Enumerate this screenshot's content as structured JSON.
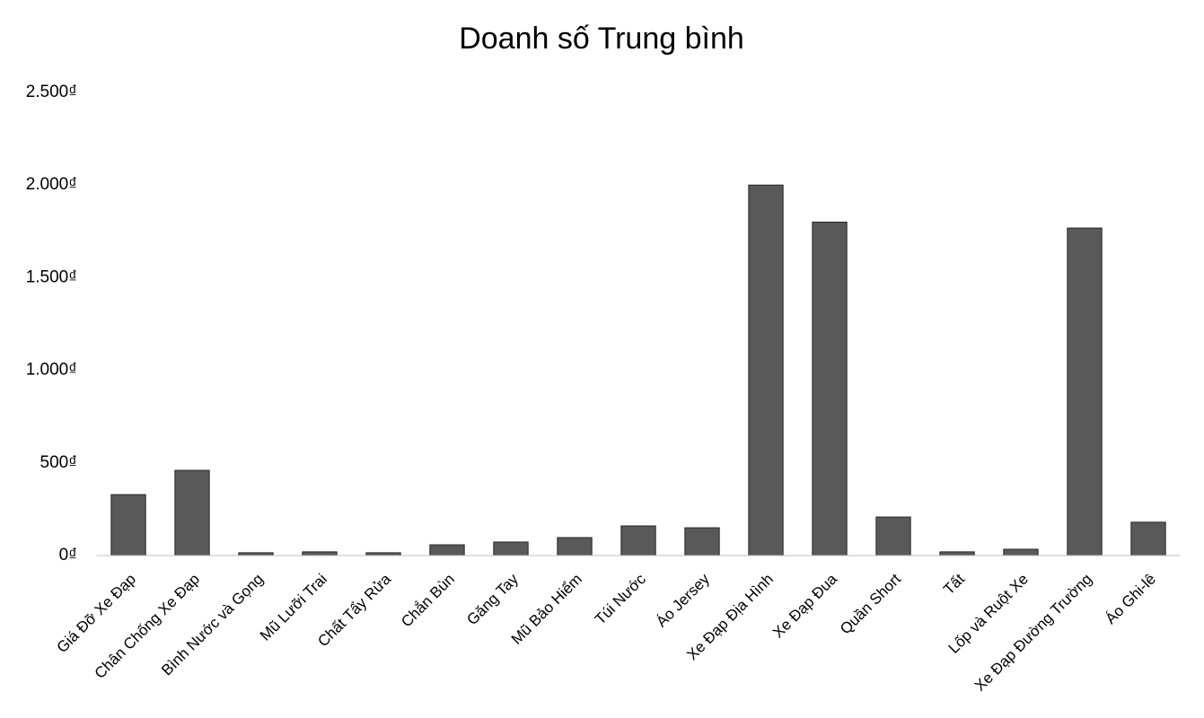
{
  "chart_data": {
    "type": "bar",
    "title": "Doanh số Trung bình",
    "categories": [
      "Giá Đỡ Xe Đạp",
      "Chân Chống Xe Đạp",
      "Bình Nước và Gọng",
      "Mũ Lưỡi Trai",
      "Chất Tẩy Rửa",
      "Chắn Bùn",
      "Găng Tay",
      "Mũ Bảo Hiểm",
      "Túi Nước",
      "Áo Jersey",
      "Xe Đạp Địa Hình",
      "Xe Đạp Đua",
      "Quần Short",
      "Tất",
      "Lốp và Ruột Xe",
      "Xe Đạp Đường Trường",
      "Áo Ghi-lê"
    ],
    "values": [
      329,
      460,
      15,
      20,
      15,
      58,
      73,
      97,
      160,
      150,
      2000,
      1800,
      208,
      20,
      34,
      1768,
      180
    ],
    "color": "#595959",
    "ylim": [
      0,
      2500
    ],
    "yticks": [
      {
        "value": 0,
        "label": "0₫"
      },
      {
        "value": 500,
        "label": "500₫"
      },
      {
        "value": 1000,
        "label": "1.000₫"
      },
      {
        "value": 1500,
        "label": "1.500₫"
      },
      {
        "value": 2000,
        "label": "2.000₫"
      },
      {
        "value": 2500,
        "label": "2.500₫"
      }
    ],
    "grid": false
  }
}
